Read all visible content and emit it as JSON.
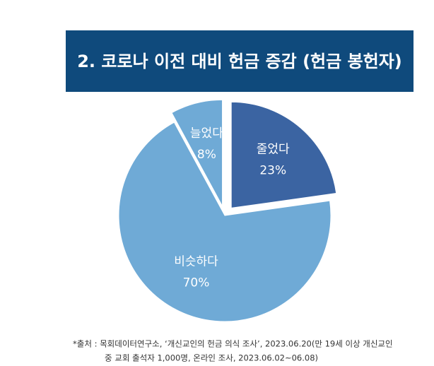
{
  "chart_data": {
    "type": "pie",
    "title": "2. 코로나 이전 대비 헌금 증감 (헌금 봉헌자)",
    "categories": [
      "줄었다",
      "비슷하다",
      "늘었다"
    ],
    "values": [
      23,
      70,
      8
    ],
    "value_labels": [
      "23%",
      "70%",
      "8%"
    ],
    "colors": [
      "#3b64a2",
      "#6faad6",
      "#6faad6"
    ],
    "explode": [
      true,
      false,
      true
    ],
    "source": [
      "*출처 : 목회데이터연구소, ‘개신교인의 헌금 의식 조사’, 2023.06.20(만 19세 이상 개신교인",
      "중 교회 출석자 1,000명, 온라인 조사, 2023.06.02~06.08)"
    ]
  }
}
